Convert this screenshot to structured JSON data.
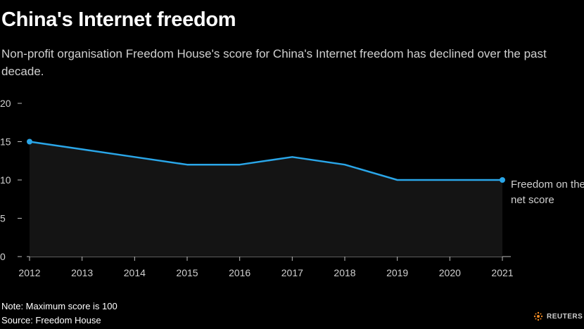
{
  "title": "China's Internet freedom",
  "subtitle": "Non-profit organisation Freedom House's score for China's Internet freedom has declined over the past decade.",
  "note": "Note: Maximum score is 100",
  "source": "Source: Freedom House",
  "brand": "REUTERS",
  "colors": {
    "background": "#000000",
    "line": "#2aa6e8",
    "area": "#141414",
    "text": "#d0d0d0"
  },
  "chart_data": {
    "type": "area",
    "title": "China's Internet freedom",
    "subtitle": "Non-profit organisation Freedom House's score for China's Internet freedom has declined over the past decade.",
    "xlabel": "",
    "ylabel": "",
    "x": [
      "2012",
      "2013",
      "2014",
      "2015",
      "2016",
      "2017",
      "2018",
      "2019",
      "2020",
      "2021"
    ],
    "series": [
      {
        "name": "Freedom on the net score",
        "values": [
          15,
          14,
          13,
          12,
          12,
          13,
          12,
          10,
          10,
          10
        ]
      }
    ],
    "series_label_lines": [
      "Freedom on the",
      "net score"
    ],
    "ylim": [
      0,
      20
    ],
    "yticks": [
      0,
      5,
      10,
      15,
      20
    ],
    "grid": false,
    "markers": "endpoints"
  }
}
